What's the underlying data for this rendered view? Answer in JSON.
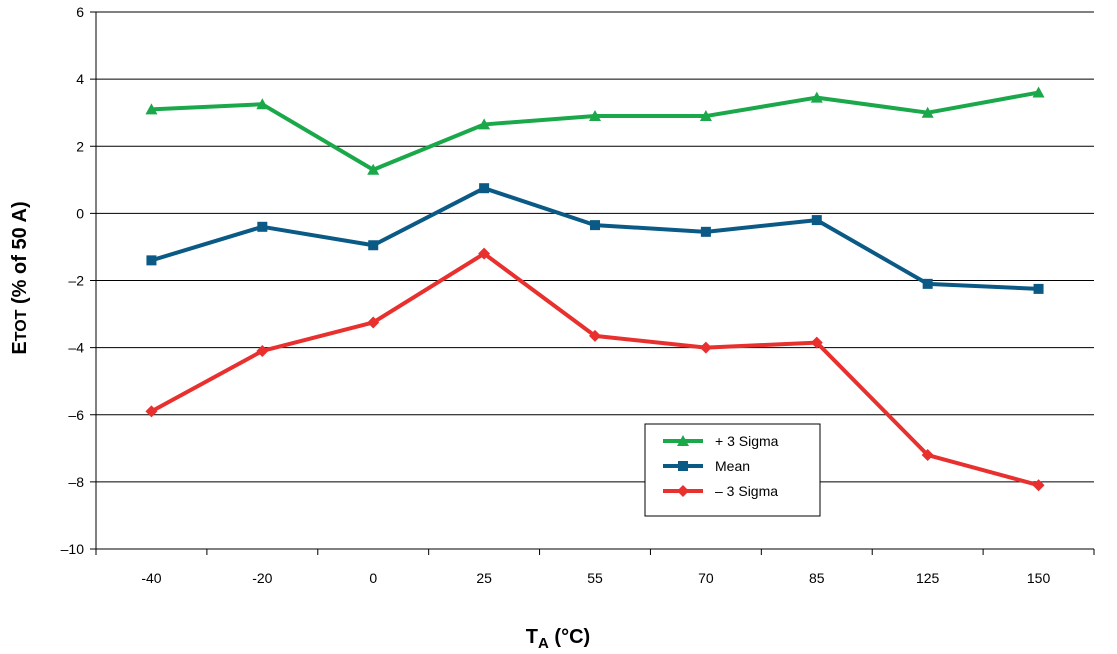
{
  "chart_data": {
    "type": "line",
    "categories": [
      "-40",
      "-20",
      "0",
      "25",
      "55",
      "70",
      "85",
      "125",
      "150"
    ],
    "ylabel_main": "E",
    "ylabel_sub": "TOT",
    "ylabel_rest": " (% of 50 A)",
    "xlabel_main": "T",
    "xlabel_sub": "A",
    "xlabel_rest": " (°C)",
    "ylim": [
      -10,
      6
    ],
    "yticks": [
      6,
      4,
      2,
      0,
      -2,
      -4,
      -6,
      -8,
      -10
    ],
    "ytick_labels": [
      "6",
      "4",
      "2",
      "0",
      "–2",
      "–4",
      "–6",
      "–8",
      "–10"
    ],
    "grid": true,
    "legend_position": "lower-right",
    "series": [
      {
        "name": "+ 3 Sigma",
        "color": "#1aa84a",
        "marker": "triangle",
        "values": [
          3.1,
          3.25,
          1.3,
          2.65,
          2.9,
          2.9,
          3.45,
          3.0,
          3.6
        ]
      },
      {
        "name": "Mean",
        "color": "#0a5a85",
        "marker": "square",
        "values": [
          -1.4,
          -0.4,
          -0.95,
          0.75,
          -0.35,
          -0.55,
          -0.2,
          -2.1,
          -2.25
        ]
      },
      {
        "name": "– 3 Sigma",
        "color": "#e8302e",
        "marker": "diamond",
        "values": [
          -5.9,
          -4.1,
          -3.25,
          -1.2,
          -3.65,
          -4.0,
          -3.85,
          -7.2,
          -8.1
        ]
      }
    ]
  }
}
